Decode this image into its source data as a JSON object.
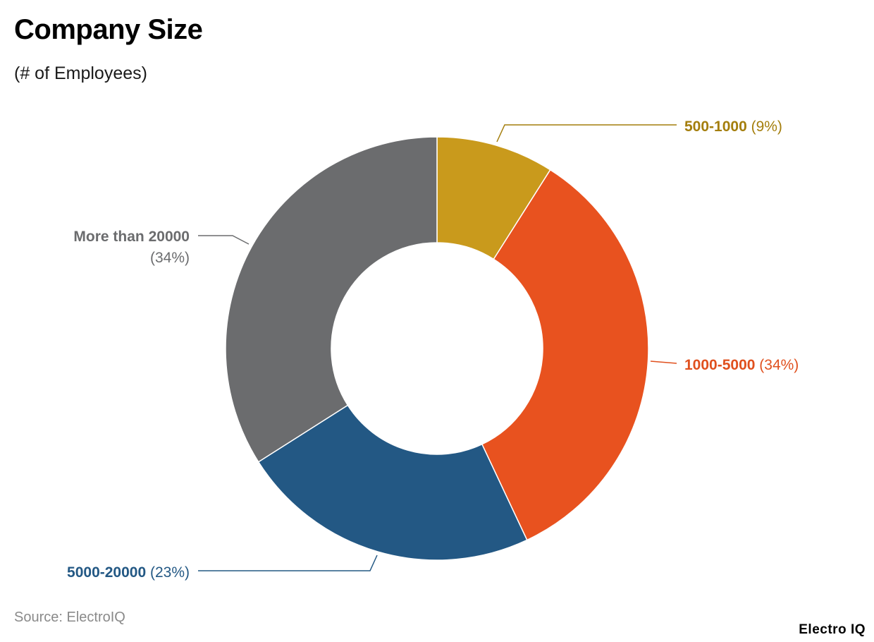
{
  "title": "Company Size",
  "subtitle": "(# of Employees)",
  "source": "Source: ElectroIQ",
  "brand": "Electro IQ",
  "chart_data": {
    "type": "pie",
    "donut": true,
    "title": "Company Size",
    "subtitle": "(# of Employees)",
    "slices": [
      {
        "label": "500-1000",
        "value": 9,
        "value_label": "(9%)",
        "color": "#C99A1C",
        "label_color": "#A47E0C"
      },
      {
        "label": "1000-5000",
        "value": 34,
        "value_label": "(34%)",
        "color": "#E8521F",
        "label_color": "#E0501E"
      },
      {
        "label": "5000-20000",
        "value": 23,
        "value_label": "(23%)",
        "color": "#235884",
        "label_color": "#235884"
      },
      {
        "label": "More than 20000",
        "value": 34,
        "value_label": "(34%)",
        "color": "#6B6C6E",
        "label_color": "#6B6C6E"
      }
    ]
  }
}
